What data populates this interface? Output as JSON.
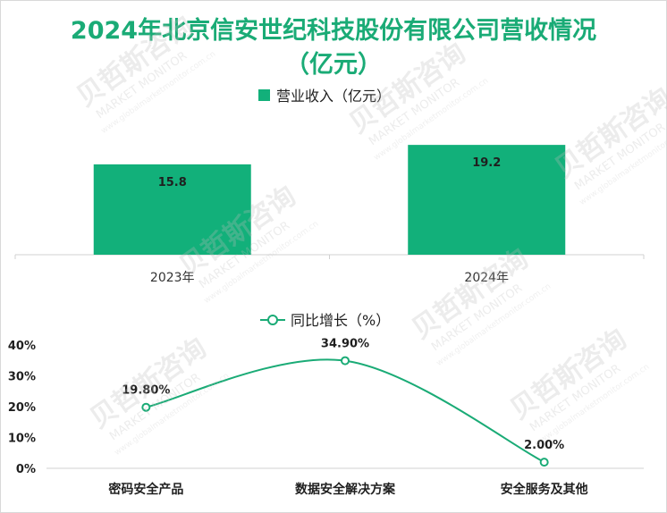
{
  "title_line1": "2024年北京信安世纪科技股份有限公司营收情况",
  "title_line2": "（亿元）",
  "watermark": {
    "brand_cn": "贝哲斯咨询",
    "brand_en": "MARKET MONITOR",
    "site": "www.globalmarketmonitor.com.cn"
  },
  "chart_data": [
    {
      "type": "bar",
      "legend": "营业收入（亿元）",
      "categories": [
        "2023年",
        "2024年"
      ],
      "values": [
        15.8,
        19.2
      ],
      "data_labels": [
        "15.8",
        "19.2"
      ],
      "ylim": [
        0,
        20
      ],
      "color": "#12b07a",
      "grid": false
    },
    {
      "type": "line",
      "legend": "同比增长（%）",
      "categories": [
        "密码安全产品",
        "数据安全解决方案",
        "安全服务及其他"
      ],
      "values": [
        19.8,
        34.9,
        2.0
      ],
      "data_labels": [
        "19.80%",
        "34.90%",
        "2.00%"
      ],
      "yticks": [
        "0%",
        "10%",
        "20%",
        "30%",
        "40%"
      ],
      "ylim": [
        0,
        40
      ],
      "color": "#1aab76",
      "grid": false
    }
  ]
}
